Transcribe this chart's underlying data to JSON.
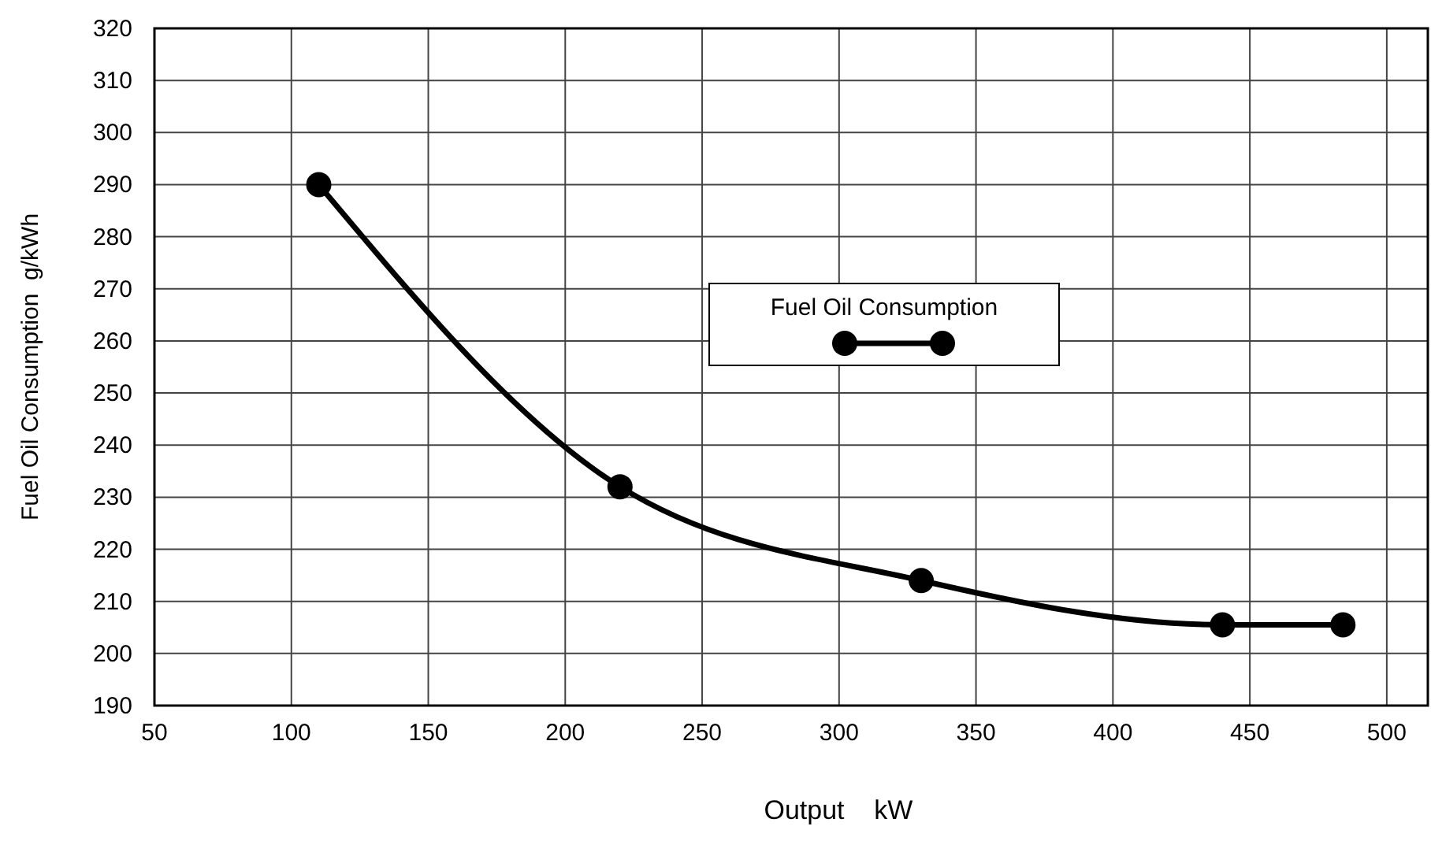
{
  "chart_data": {
    "type": "line",
    "xlabel": "Output    kW",
    "ylabel": "Fuel Oil Consumption  g/kWh",
    "x": [
      110,
      220,
      330,
      440,
      484
    ],
    "series": [
      {
        "name": "Fuel Oil Consumption",
        "color": "#000000",
        "values": [
          290,
          232,
          214,
          205.5,
          205.5
        ]
      }
    ],
    "xlim": [
      50,
      515
    ],
    "xticks": [
      50,
      100,
      150,
      200,
      250,
      300,
      350,
      400,
      450,
      500
    ],
    "ylim": [
      190,
      320
    ],
    "yticks": [
      190,
      200,
      210,
      220,
      230,
      240,
      250,
      260,
      270,
      280,
      290,
      300,
      310,
      320
    ],
    "grid": true,
    "legend": "right",
    "marker": "circle",
    "line_style": "solid"
  }
}
